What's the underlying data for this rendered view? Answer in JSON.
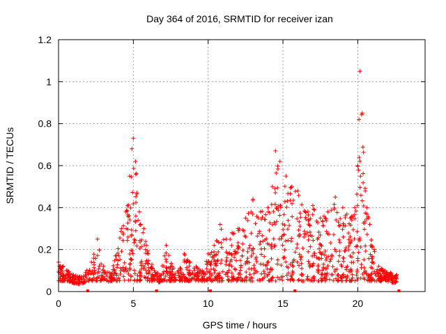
{
  "chart_data": {
    "type": "scatter",
    "title": "Day 364 of 2016, SRMTID for receiver izan",
    "xlabel": "GPS time / hours",
    "ylabel": "SRMTID / TECUs",
    "xlim": [
      0,
      24.5
    ],
    "ylim": [
      0,
      1.2
    ],
    "x_ticks": [
      0,
      5,
      10,
      15,
      20
    ],
    "x_tick_labels": [
      "0",
      "5",
      "10",
      "15",
      "20"
    ],
    "y_ticks": [
      0,
      0.2,
      0.4,
      0.6,
      0.8,
      1.0,
      1.2
    ],
    "y_tick_labels": [
      "0",
      "0.2",
      "0.4",
      "0.6",
      "0.8",
      "1",
      "1.2"
    ],
    "grid": true,
    "marker": "+",
    "color": "#ff0000",
    "envelope_description": "SRMTID values per epoch; upper envelope sampled at key times",
    "series": [
      {
        "name": "SRMTID",
        "x": [
          0.0,
          0.3,
          0.6,
          1.0,
          1.4,
          1.8,
          2.2,
          2.6,
          3.0,
          3.4,
          3.8,
          4.2,
          4.5,
          4.75,
          4.9,
          5.0,
          5.15,
          5.4,
          5.7,
          6.0,
          6.4,
          6.8,
          7.2,
          7.6,
          8.0,
          8.4,
          8.8,
          9.2,
          9.6,
          10.0,
          10.4,
          10.8,
          11.2,
          11.6,
          12.0,
          12.5,
          13.0,
          13.5,
          14.0,
          14.3,
          14.5,
          14.8,
          15.2,
          15.6,
          16.0,
          16.5,
          17.0,
          17.5,
          18.0,
          18.5,
          19.0,
          19.5,
          19.8,
          20.0,
          20.15,
          20.3,
          20.5,
          20.8,
          21.1,
          21.4,
          21.8,
          22.2,
          22.6
        ],
        "y": [
          0.14,
          0.12,
          0.1,
          0.08,
          0.07,
          0.09,
          0.14,
          0.25,
          0.12,
          0.09,
          0.17,
          0.3,
          0.38,
          0.55,
          0.68,
          0.73,
          0.62,
          0.38,
          0.3,
          0.18,
          0.1,
          0.08,
          0.22,
          0.12,
          0.1,
          0.18,
          0.14,
          0.12,
          0.1,
          0.18,
          0.22,
          0.32,
          0.25,
          0.28,
          0.3,
          0.35,
          0.44,
          0.38,
          0.4,
          0.5,
          0.67,
          0.62,
          0.55,
          0.5,
          0.48,
          0.38,
          0.41,
          0.35,
          0.38,
          0.45,
          0.4,
          0.35,
          0.4,
          0.6,
          1.05,
          0.85,
          0.48,
          0.32,
          0.2,
          0.12,
          0.1,
          0.09,
          0.08
        ]
      }
    ],
    "markers_at_zero_x": [
      1.95,
      6.55,
      10.15,
      15.8,
      22.75
    ]
  }
}
